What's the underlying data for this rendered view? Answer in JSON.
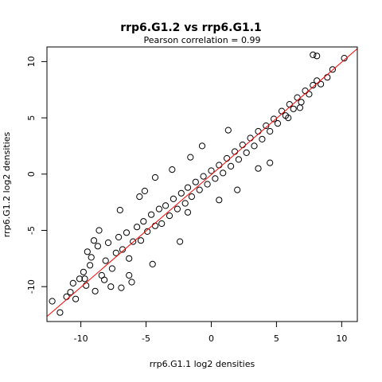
{
  "chart_data": {
    "type": "scatter",
    "title": "rrp6.G1.2 vs rrp6.G1.1",
    "subtitle": "Pearson correlation =  0.99",
    "xlabel": "rrp6.G1.1 log2 densities",
    "ylabel": "rrp6.G1.2 log2 densities",
    "xlim": [
      -12.6,
      11.2
    ],
    "ylim": [
      -13.1,
      11.3
    ],
    "xticks": [
      -10,
      -5,
      0,
      5,
      10
    ],
    "yticks": [
      -10,
      -5,
      0,
      5,
      10
    ],
    "grid": false,
    "marker": "open-circle",
    "colors": {
      "points": "#000000",
      "fit_line": "#ff0000",
      "axes": "#000000"
    },
    "fit_line": {
      "intercept": -0.05,
      "slope": 1.0,
      "color": "#ff0000"
    },
    "points": [
      [
        -12.2,
        -11.3
      ],
      [
        -11.6,
        -12.3
      ],
      [
        -11.1,
        -10.9
      ],
      [
        -10.8,
        -10.5
      ],
      [
        -10.4,
        -11.1
      ],
      [
        -10.6,
        -9.7
      ],
      [
        -10.1,
        -9.3
      ],
      [
        -9.8,
        -8.7
      ],
      [
        -9.6,
        -9.9
      ],
      [
        -9.3,
        -8.1
      ],
      [
        -9.5,
        -6.9
      ],
      [
        -9.2,
        -7.4
      ],
      [
        -9.0,
        -5.9
      ],
      [
        -8.7,
        -6.4
      ],
      [
        -8.4,
        -9.0
      ],
      [
        -8.1,
        -7.7
      ],
      [
        -7.9,
        -6.1
      ],
      [
        -7.6,
        -8.4
      ],
      [
        -7.3,
        -7.0
      ],
      [
        -7.1,
        -5.6
      ],
      [
        -6.8,
        -6.7
      ],
      [
        -6.5,
        -5.2
      ],
      [
        -6.3,
        -7.5
      ],
      [
        -6.0,
        -6.0
      ],
      [
        -5.7,
        -4.7
      ],
      [
        -5.4,
        -5.9
      ],
      [
        -5.2,
        -4.2
      ],
      [
        -4.9,
        -5.1
      ],
      [
        -4.6,
        -3.6
      ],
      [
        -4.3,
        -4.6
      ],
      [
        -4.0,
        -3.1
      ],
      [
        -3.8,
        -4.4
      ],
      [
        -3.5,
        -2.8
      ],
      [
        -3.2,
        -3.7
      ],
      [
        -2.9,
        -2.2
      ],
      [
        -2.6,
        -3.1
      ],
      [
        -2.3,
        -1.7
      ],
      [
        -2.0,
        -2.6
      ],
      [
        -1.8,
        -1.2
      ],
      [
        -1.5,
        -2.0
      ],
      [
        -1.2,
        -0.7
      ],
      [
        -0.9,
        -1.4
      ],
      [
        -0.6,
        -0.2
      ],
      [
        -0.3,
        -0.9
      ],
      [
        0.0,
        0.3
      ],
      [
        0.3,
        -0.4
      ],
      [
        0.6,
        0.8
      ],
      [
        0.9,
        0.1
      ],
      [
        1.2,
        1.4
      ],
      [
        1.5,
        0.7
      ],
      [
        1.8,
        2.0
      ],
      [
        2.1,
        1.3
      ],
      [
        2.4,
        2.6
      ],
      [
        2.7,
        1.9
      ],
      [
        3.0,
        3.2
      ],
      [
        3.3,
        2.5
      ],
      [
        3.6,
        3.8
      ],
      [
        3.9,
        3.1
      ],
      [
        4.2,
        4.3
      ],
      [
        4.5,
        3.8
      ],
      [
        4.8,
        4.9
      ],
      [
        5.1,
        4.5
      ],
      [
        5.4,
        5.6
      ],
      [
        5.7,
        5.2
      ],
      [
        6.0,
        6.2
      ],
      [
        6.3,
        5.8
      ],
      [
        6.6,
        6.8
      ],
      [
        6.9,
        6.4
      ],
      [
        7.2,
        7.4
      ],
      [
        7.5,
        7.1
      ],
      [
        7.8,
        7.9
      ],
      [
        8.1,
        8.3
      ],
      [
        8.4,
        8.0
      ],
      [
        8.9,
        8.6
      ],
      [
        7.8,
        10.6
      ],
      [
        8.1,
        10.5
      ],
      [
        9.3,
        9.3
      ],
      [
        10.2,
        10.3
      ],
      [
        -3.0,
        0.4
      ],
      [
        -5.1,
        -1.5
      ],
      [
        -7.0,
        -3.2
      ],
      [
        -1.6,
        1.5
      ],
      [
        2.0,
        -1.4
      ],
      [
        4.5,
        1.0
      ],
      [
        -2.4,
        -6.0
      ],
      [
        -1.8,
        -3.4
      ],
      [
        -4.5,
        -8.0
      ],
      [
        0.6,
        -2.3
      ],
      [
        -5.5,
        -2.0
      ],
      [
        -8.6,
        -5.0
      ],
      [
        -7.7,
        -10.0
      ],
      [
        -6.1,
        -9.6
      ],
      [
        -9.7,
        -9.3
      ],
      [
        -8.2,
        -9.4
      ],
      [
        3.6,
        0.5
      ],
      [
        5.9,
        5.0
      ],
      [
        6.8,
        5.9
      ],
      [
        -0.7,
        2.5
      ],
      [
        -4.3,
        -0.3
      ],
      [
        1.3,
        3.9
      ],
      [
        -6.9,
        -10.1
      ],
      [
        -6.3,
        -9.0
      ],
      [
        -8.9,
        -10.4
      ]
    ]
  }
}
